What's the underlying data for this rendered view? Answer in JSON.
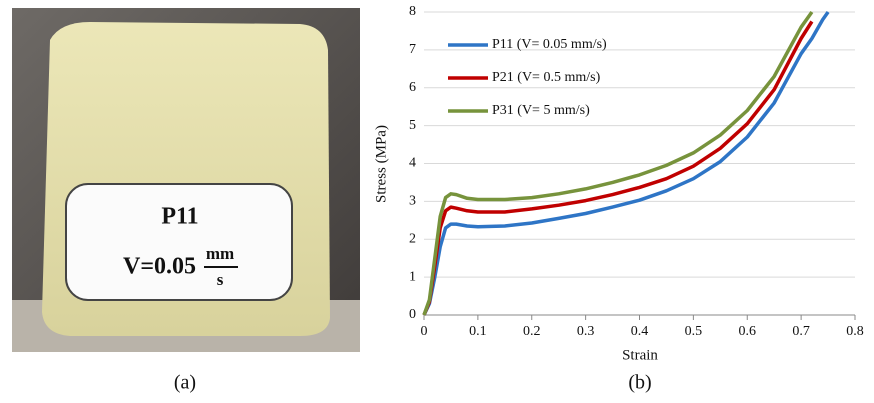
{
  "photo": {
    "label_title": "P11",
    "label_v": "V=0.05",
    "label_unit_num": "mm",
    "label_unit_den": "s"
  },
  "captions": [
    "(a)",
    "(b)"
  ],
  "chart_data": {
    "type": "line",
    "xlabel": "Strain",
    "ylabel": "Stress (MPa)",
    "x": [
      0,
      0.01,
      0.02,
      0.03,
      0.04,
      0.05,
      0.06,
      0.08,
      0.1,
      0.15,
      0.2,
      0.25,
      0.3,
      0.35,
      0.4,
      0.45,
      0.5,
      0.55,
      0.6,
      0.65,
      0.7,
      0.72,
      0.74,
      0.75
    ],
    "series": [
      {
        "name": "P11 (V= 0.05 mm/s)",
        "color": "#2e75c6",
        "values": [
          0,
          0.3,
          1.0,
          1.8,
          2.3,
          2.4,
          2.4,
          2.35,
          2.33,
          2.35,
          2.43,
          2.55,
          2.68,
          2.85,
          3.03,
          3.28,
          3.6,
          4.05,
          4.7,
          5.6,
          6.9,
          7.3,
          7.8,
          8.0
        ]
      },
      {
        "name": "P21 (V= 0.5 mm/s)",
        "color": "#c00000",
        "values": [
          0,
          0.35,
          1.3,
          2.3,
          2.75,
          2.85,
          2.82,
          2.75,
          2.72,
          2.72,
          2.8,
          2.9,
          3.02,
          3.18,
          3.37,
          3.6,
          3.93,
          4.4,
          5.05,
          5.95,
          7.3,
          7.75,
          null,
          null
        ]
      },
      {
        "name": "P31 (V= 5 mm/s)",
        "color": "#77933c",
        "values": [
          0,
          0.4,
          1.5,
          2.6,
          3.1,
          3.2,
          3.18,
          3.08,
          3.05,
          3.05,
          3.1,
          3.2,
          3.33,
          3.5,
          3.7,
          3.95,
          4.28,
          4.75,
          5.4,
          6.3,
          7.6,
          8.0,
          null,
          null
        ]
      }
    ],
    "xlim": [
      0,
      0.8
    ],
    "ylim": [
      0,
      8
    ],
    "xticks": [
      0,
      0.1,
      0.2,
      0.3,
      0.4,
      0.5,
      0.6,
      0.7,
      0.8
    ],
    "yticks": [
      0,
      1,
      2,
      3,
      4,
      5,
      6,
      7,
      8
    ],
    "grid": true,
    "legend": "upper-left"
  }
}
